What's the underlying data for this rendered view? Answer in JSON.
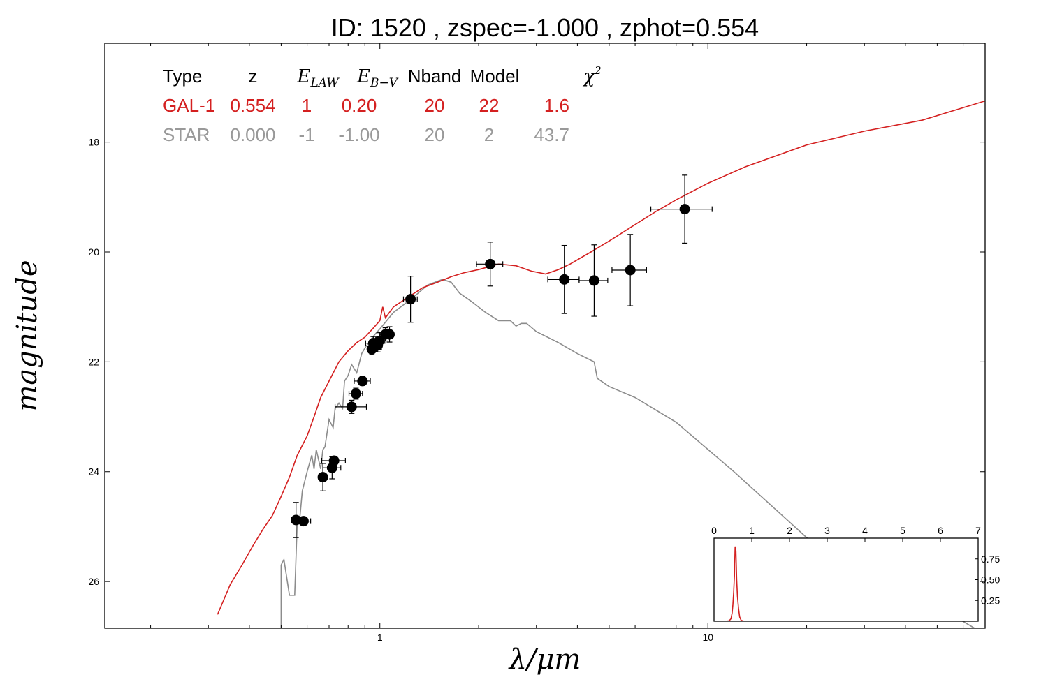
{
  "title": "ID:  1520  , zspec=-1.000 , zphot=0.554",
  "colors": {
    "galaxy": "#d42020",
    "star": "#8c8c8c",
    "points": "#000000",
    "axis": "#000000"
  },
  "table": {
    "headers": [
      {
        "key": "type",
        "text": "Type",
        "math": false
      },
      {
        "key": "z",
        "text": "z",
        "math": false
      },
      {
        "key": "elaw",
        "text": "E",
        "sub": "LAW",
        "math": true
      },
      {
        "key": "ebv",
        "text": "E",
        "sub": "B−V",
        "math": true
      },
      {
        "key": "nband",
        "text": "Nband",
        "math": false
      },
      {
        "key": "model",
        "text": "Model",
        "math": false
      },
      {
        "key": "chi2",
        "text": "χ",
        "sup": "2",
        "math": true
      }
    ],
    "rows": [
      {
        "name": "galaxy",
        "color": "#d42020",
        "cells": [
          "GAL-1",
          "0.554",
          "1",
          "0.20",
          "20",
          "22",
          "1.6"
        ]
      },
      {
        "name": "star",
        "color": "#999999",
        "cells": [
          "STAR",
          "0.000",
          "-1",
          "-1.00",
          "20",
          "2",
          "43.7"
        ]
      }
    ]
  },
  "chart_data": [
    {
      "type": "line",
      "xlabel": "λ/μm",
      "ylabel": "magnitude",
      "x_scale": "log",
      "xlim": [
        0.145,
        70
      ],
      "ylim": [
        26.85,
        16.2
      ],
      "x_ticks": [
        1,
        10
      ],
      "y_ticks": [
        18,
        20,
        22,
        24,
        26
      ],
      "series": [
        {
          "name": "GAL-1",
          "color": "#d42020",
          "x": [
            0.32,
            0.35,
            0.38,
            0.41,
            0.44,
            0.47,
            0.5,
            0.53,
            0.56,
            0.6,
            0.63,
            0.66,
            0.7,
            0.75,
            0.8,
            0.85,
            0.9,
            0.95,
            1.0,
            1.02,
            1.04,
            1.1,
            1.2,
            1.35,
            1.5,
            1.65,
            1.8,
            2.0,
            2.3,
            2.6,
            2.9,
            3.2,
            3.5,
            3.8,
            4.4,
            5.0,
            6.0,
            7.0,
            8.0,
            10.0,
            13.0,
            20.0,
            30.0,
            45.0,
            70.0
          ],
          "y": [
            26.6,
            26.05,
            25.7,
            25.35,
            25.05,
            24.8,
            24.45,
            24.1,
            23.7,
            23.35,
            23.0,
            22.65,
            22.35,
            22.0,
            21.8,
            21.65,
            21.55,
            21.4,
            21.25,
            21.0,
            21.2,
            21.0,
            20.85,
            20.65,
            20.55,
            20.45,
            20.38,
            20.32,
            20.22,
            20.25,
            20.35,
            20.4,
            20.32,
            20.22,
            20.0,
            19.8,
            19.5,
            19.25,
            19.05,
            18.75,
            18.45,
            18.05,
            17.8,
            17.6,
            17.25
          ]
        },
        {
          "name": "STAR",
          "color": "#8c8c8c",
          "x": [
            0.5,
            0.5,
            0.51,
            0.53,
            0.55,
            0.56,
            0.57,
            0.58,
            0.6,
            0.62,
            0.63,
            0.64,
            0.66,
            0.67,
            0.68,
            0.7,
            0.72,
            0.73,
            0.75,
            0.77,
            0.78,
            0.8,
            0.82,
            0.85,
            0.88,
            0.9,
            0.95,
            1.0,
            1.1,
            1.25,
            1.4,
            1.55,
            1.65,
            1.75,
            1.9,
            2.1,
            2.3,
            2.5,
            2.6,
            2.7,
            2.8,
            3.0,
            3.5,
            4.0,
            4.5,
            4.6,
            5.0,
            6.0,
            8.0,
            12.0,
            20.0,
            30.0,
            50.0,
            65.0
          ],
          "y": [
            26.85,
            25.7,
            25.6,
            26.25,
            26.25,
            24.9,
            24.85,
            24.35,
            24.0,
            23.7,
            23.95,
            23.6,
            23.95,
            23.6,
            23.55,
            23.05,
            23.2,
            22.85,
            22.75,
            22.85,
            22.35,
            22.25,
            22.05,
            22.2,
            21.85,
            21.75,
            21.55,
            21.4,
            21.1,
            20.85,
            20.6,
            20.5,
            20.55,
            20.75,
            20.9,
            21.1,
            21.25,
            21.25,
            21.35,
            21.3,
            21.3,
            21.45,
            21.65,
            21.85,
            22.0,
            22.3,
            22.45,
            22.65,
            23.1,
            24.0,
            25.2,
            25.9,
            26.45,
            26.85
          ]
        }
      ],
      "points": [
        {
          "x": 0.555,
          "y": 24.88,
          "xerr": 0.018,
          "yerr": 0.32
        },
        {
          "x": 0.585,
          "y": 24.9,
          "xerr": 0.03,
          "yerr": 0.0
        },
        {
          "x": 0.67,
          "y": 24.1,
          "xerr": 0.02,
          "yerr": 0.25
        },
        {
          "x": 0.715,
          "y": 23.93,
          "xerr": 0.045,
          "yerr": 0.2
        },
        {
          "x": 0.725,
          "y": 23.8,
          "xerr": 0.06,
          "yerr": 0.0
        },
        {
          "x": 0.82,
          "y": 22.82,
          "xerr": 0.09,
          "yerr": 0.12
        },
        {
          "x": 0.845,
          "y": 22.58,
          "xerr": 0.04,
          "yerr": 0.1
        },
        {
          "x": 0.885,
          "y": 22.35,
          "xerr": 0.05,
          "yerr": 0.08
        },
        {
          "x": 0.945,
          "y": 21.77,
          "xerr": 0.03,
          "yerr": 0.1
        },
        {
          "x": 0.955,
          "y": 21.66,
          "xerr": 0.05,
          "yerr": 0.12
        },
        {
          "x": 0.985,
          "y": 21.7,
          "xerr": 0.02,
          "yerr": 0.12
        },
        {
          "x": 0.995,
          "y": 21.62,
          "xerr": 0.04,
          "yerr": 0.15
        },
        {
          "x": 1.04,
          "y": 21.5,
          "xerr": 0.04,
          "yerr": 0.12
        },
        {
          "x": 1.07,
          "y": 21.5,
          "xerr": 0.03,
          "yerr": 0.14
        },
        {
          "x": 1.24,
          "y": 20.86,
          "xerr": 0.06,
          "yerr": 0.42
        },
        {
          "x": 2.17,
          "y": 20.22,
          "xerr": 0.2,
          "yerr": 0.4
        },
        {
          "x": 3.65,
          "y": 20.5,
          "xerr": 0.4,
          "yerr": 0.62
        },
        {
          "x": 4.5,
          "y": 20.52,
          "xerr": 0.45,
          "yerr": 0.65
        },
        {
          "x": 5.8,
          "y": 20.33,
          "xerr": 0.7,
          "yerr": 0.65
        },
        {
          "x": 8.5,
          "y": 19.22,
          "xerr": 1.8,
          "yerr": 0.62
        }
      ]
    },
    {
      "type": "line",
      "name": "inset",
      "xlim": [
        0,
        7
      ],
      "ylim": [
        0,
        1.0
      ],
      "x_ticks": [
        0,
        1,
        2,
        3,
        4,
        5,
        6,
        7
      ],
      "y_ticks": [
        0.25,
        0.5,
        0.75
      ],
      "y_tick_labels": [
        "0.25",
        "0.50",
        "0.75"
      ],
      "series": [
        {
          "color": "#d42020",
          "x": [
            0.0,
            0.3,
            0.4,
            0.45,
            0.48,
            0.5,
            0.52,
            0.54,
            0.56,
            0.58,
            0.6,
            0.62,
            0.65,
            0.68,
            0.72,
            0.8,
            7.0
          ],
          "y": [
            0.0,
            0.0,
            0.005,
            0.03,
            0.1,
            0.2,
            0.35,
            0.55,
            0.9,
            0.85,
            0.5,
            0.3,
            0.15,
            0.05,
            0.01,
            0.0,
            0.0
          ]
        }
      ]
    }
  ]
}
